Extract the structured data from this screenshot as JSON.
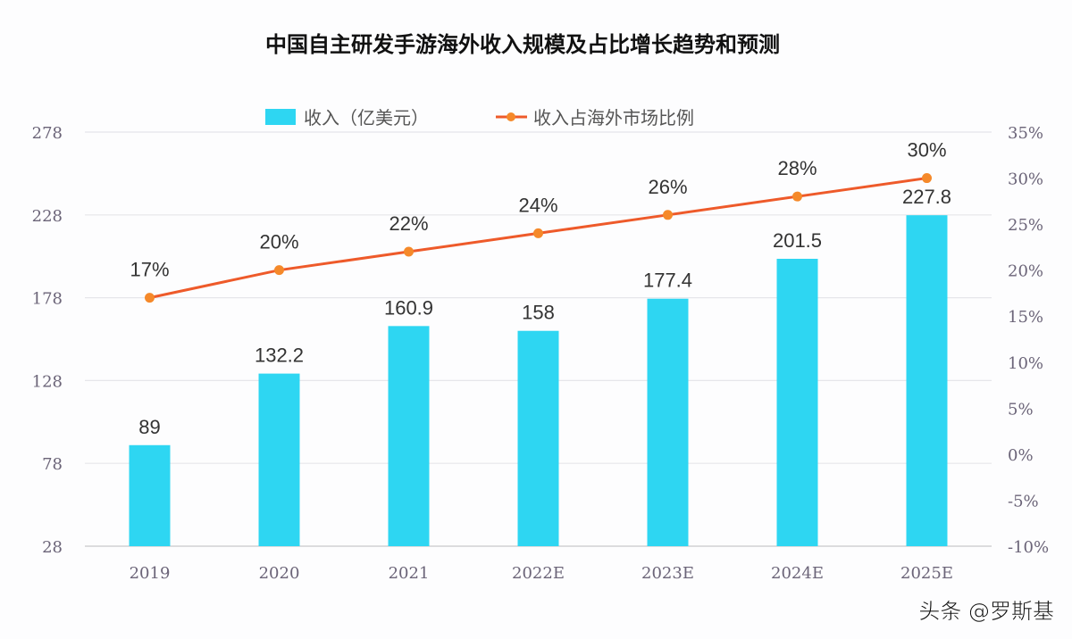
{
  "chart_data": {
    "type": "bar+line",
    "title": "中国自主研发手游海外收入规模及占比增长趋势和预测",
    "categories": [
      "2019",
      "2020",
      "2021",
      "2022E",
      "2023E",
      "2024E",
      "2025E"
    ],
    "series": [
      {
        "name": "收入（亿美元）",
        "type": "bar",
        "axis": "left",
        "values": [
          89,
          132.2,
          160.9,
          158,
          177.4,
          201.5,
          227.8
        ],
        "labels": [
          "89",
          "132.2",
          "160.9",
          "158",
          "177.4",
          "201.5",
          "227.8"
        ],
        "color": "#2ed6f2"
      },
      {
        "name": "收入占海外市场比例",
        "type": "line",
        "axis": "right",
        "values": [
          17,
          20,
          22,
          24,
          26,
          28,
          30
        ],
        "labels": [
          "17%",
          "20%",
          "22%",
          "24%",
          "26%",
          "28%",
          "30%"
        ],
        "color": "#ee5a2a",
        "marker_color": "#f5892a"
      }
    ],
    "left_axis": {
      "ylim": [
        28,
        278
      ],
      "ticks": [
        "28",
        "78",
        "128",
        "178",
        "228",
        "278"
      ]
    },
    "right_axis": {
      "ylim": [
        -10,
        35
      ],
      "ticks": [
        "-10%",
        "-5%",
        "0%",
        "5%",
        "10%",
        "15%",
        "20%",
        "25%",
        "30%",
        "35%"
      ]
    },
    "grid": true,
    "legend": "top"
  },
  "watermark": "头条 @罗斯基"
}
